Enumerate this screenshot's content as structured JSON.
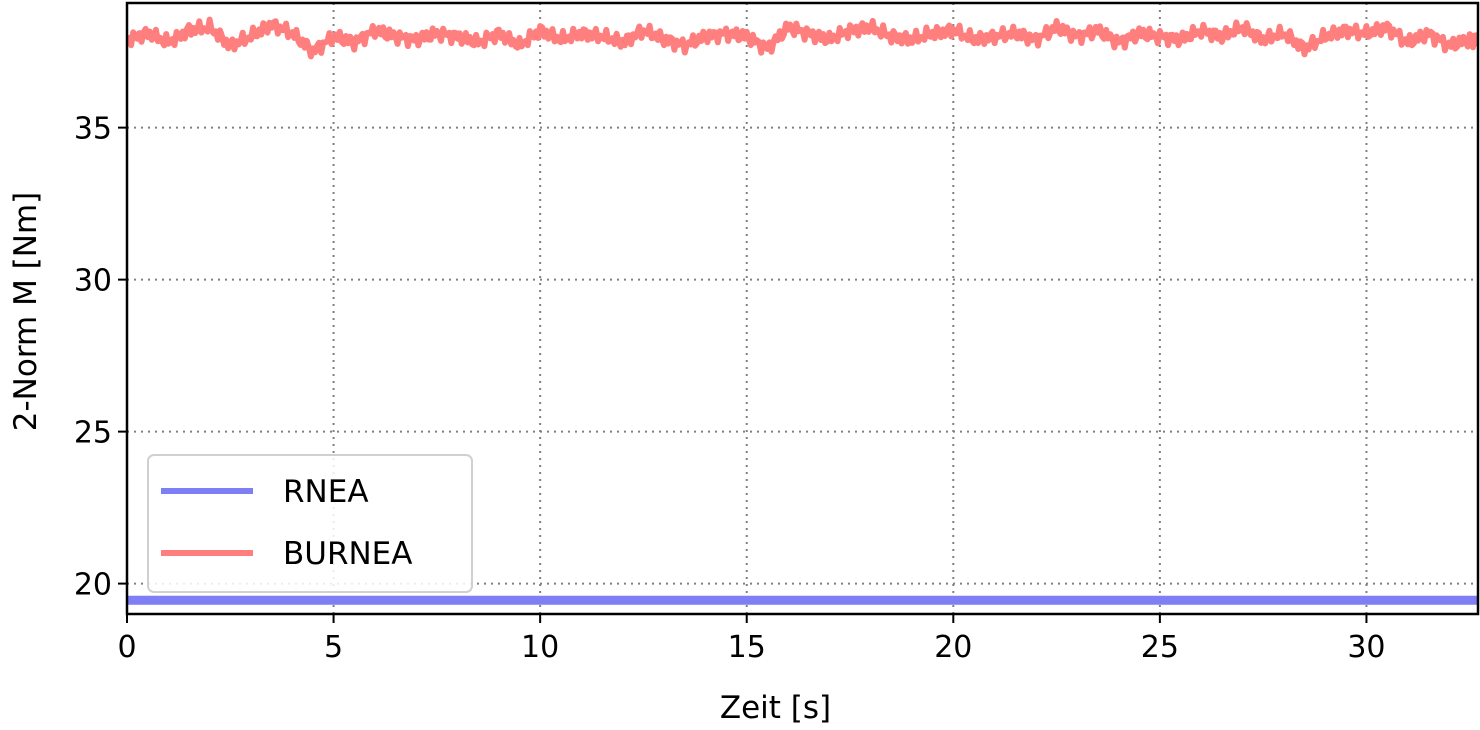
{
  "chart_data": {
    "type": "line",
    "xlabel": "Zeit [s]",
    "ylabel": "2-Norm M [Nm]",
    "xlim": [
      0,
      32.7
    ],
    "ylim": [
      19,
      39.1
    ],
    "xticks": [
      0,
      5,
      10,
      15,
      20,
      25,
      30
    ],
    "yticks": [
      20,
      25,
      30,
      35
    ],
    "grid": true,
    "legend_position": "lower-left",
    "series": [
      {
        "name": "RNEA",
        "color": "#7f7ff5",
        "x": [
          0,
          32.7
        ],
        "y": [
          19.45,
          19.45
        ]
      },
      {
        "name": "BURNEA",
        "color": "#ff7f7f",
        "x": [
          0,
          0.5,
          1,
          1.5,
          2,
          2.5,
          3,
          3.5,
          4,
          4.5,
          5,
          5.5,
          6,
          6.5,
          7,
          7.5,
          8,
          8.5,
          9,
          9.5,
          10,
          10.5,
          11,
          11.5,
          12,
          12.5,
          13,
          13.5,
          14,
          14.5,
          15,
          15.5,
          16,
          16.5,
          17,
          17.5,
          18,
          18.5,
          19,
          19.5,
          20,
          20.5,
          21,
          21.5,
          22,
          22.5,
          23,
          23.5,
          24,
          24.5,
          25,
          25.5,
          26,
          26.5,
          27,
          27.5,
          28,
          28.5,
          29,
          29.5,
          30,
          30.5,
          31,
          31.5,
          32,
          32.5
        ],
        "y": [
          37.9,
          38.1,
          37.8,
          38.2,
          38.3,
          37.7,
          38.0,
          38.4,
          38.1,
          37.5,
          38.0,
          37.8,
          38.2,
          38.0,
          37.9,
          38.1,
          38.0,
          37.8,
          38.1,
          37.7,
          38.2,
          37.9,
          38.1,
          38.0,
          37.8,
          38.2,
          37.9,
          37.7,
          38.0,
          38.1,
          38.0,
          37.6,
          38.3,
          38.1,
          37.9,
          38.2,
          38.3,
          38.0,
          37.9,
          38.1,
          38.2,
          37.9,
          38.0,
          38.1,
          37.9,
          38.3,
          38.0,
          38.2,
          37.8,
          38.1,
          38.0,
          37.9,
          38.2,
          38.0,
          38.3,
          37.9,
          38.1,
          37.6,
          38.0,
          38.2,
          38.1,
          38.3,
          37.8,
          38.1,
          37.7,
          37.9
        ]
      }
    ]
  }
}
